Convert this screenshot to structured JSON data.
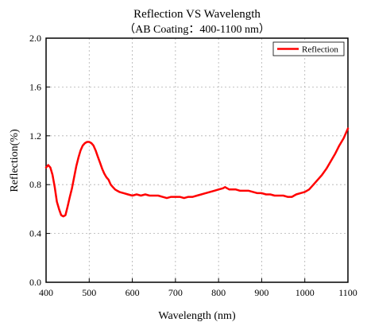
{
  "chart_data": {
    "type": "line",
    "title": "Reflection VS Wavelength",
    "subtitle": "（AB Coating：400-1100 nm）",
    "xlabel": "Wavelength (nm)",
    "ylabel": "Reflection(%)",
    "xlim": [
      400,
      1100
    ],
    "ylim": [
      0.0,
      2.0
    ],
    "x_ticks": [
      "400",
      "500",
      "600",
      "700",
      "800",
      "900",
      "1000",
      "1100"
    ],
    "y_ticks": [
      "0.0",
      "0.4",
      "0.8",
      "1.2",
      "1.6",
      "2.0"
    ],
    "grid": true,
    "legend_position": "top-right",
    "series": [
      {
        "name": "Reflection",
        "color": "#ff0000",
        "x": [
          400,
          405,
          410,
          415,
          420,
          425,
          430,
          435,
          440,
          445,
          450,
          455,
          460,
          465,
          470,
          475,
          480,
          485,
          490,
          495,
          500,
          505,
          510,
          515,
          520,
          525,
          530,
          535,
          540,
          545,
          550,
          555,
          560,
          565,
          570,
          580,
          590,
          600,
          610,
          620,
          630,
          640,
          650,
          660,
          670,
          680,
          690,
          700,
          710,
          720,
          730,
          740,
          750,
          760,
          770,
          780,
          790,
          800,
          810,
          815,
          820,
          825,
          830,
          840,
          850,
          860,
          870,
          880,
          890,
          900,
          910,
          920,
          930,
          940,
          950,
          960,
          970,
          980,
          990,
          1000,
          1010,
          1020,
          1030,
          1040,
          1050,
          1060,
          1070,
          1080,
          1090,
          1100
        ],
        "values": [
          0.94,
          0.96,
          0.94,
          0.88,
          0.78,
          0.66,
          0.6,
          0.55,
          0.54,
          0.55,
          0.62,
          0.7,
          0.77,
          0.86,
          0.95,
          1.02,
          1.08,
          1.12,
          1.14,
          1.15,
          1.15,
          1.14,
          1.12,
          1.08,
          1.03,
          0.98,
          0.93,
          0.89,
          0.86,
          0.84,
          0.8,
          0.78,
          0.76,
          0.75,
          0.74,
          0.73,
          0.72,
          0.71,
          0.72,
          0.71,
          0.72,
          0.71,
          0.71,
          0.71,
          0.7,
          0.69,
          0.7,
          0.7,
          0.7,
          0.69,
          0.7,
          0.7,
          0.71,
          0.72,
          0.73,
          0.74,
          0.75,
          0.76,
          0.77,
          0.78,
          0.77,
          0.76,
          0.76,
          0.76,
          0.75,
          0.75,
          0.75,
          0.74,
          0.73,
          0.73,
          0.72,
          0.72,
          0.71,
          0.71,
          0.71,
          0.7,
          0.7,
          0.72,
          0.73,
          0.74,
          0.76,
          0.8,
          0.84,
          0.88,
          0.93,
          0.99,
          1.05,
          1.12,
          1.18,
          1.26
        ]
      }
    ]
  }
}
